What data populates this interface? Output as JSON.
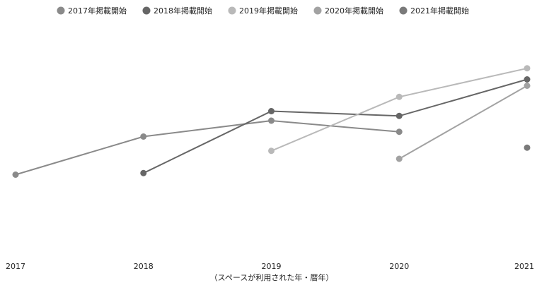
{
  "chart_data": {
    "type": "line",
    "title": "",
    "xlabel": "（スペースが利用された年・暦年）",
    "ylabel": "",
    "x": [
      "2017",
      "2018",
      "2019",
      "2020",
      "2021"
    ],
    "ylim": [
      0,
      100
    ],
    "grid": false,
    "legend_position": "top",
    "series": [
      {
        "name": "2017年掲載開始",
        "color": "#8a8a8a",
        "values": [
          30,
          54,
          64,
          57,
          null
        ]
      },
      {
        "name": "2018年掲載開始",
        "color": "#666666",
        "values": [
          null,
          31,
          70,
          67,
          90
        ]
      },
      {
        "name": "2019年掲載開始",
        "color": "#b9b9b9",
        "values": [
          null,
          null,
          45,
          79,
          97
        ]
      },
      {
        "name": "2020年掲載開始",
        "color": "#a2a2a2",
        "values": [
          null,
          null,
          null,
          40,
          86
        ]
      },
      {
        "name": "2021年掲載開始",
        "color": "#7a7a7a",
        "values": [
          null,
          null,
          null,
          null,
          47
        ]
      }
    ]
  }
}
